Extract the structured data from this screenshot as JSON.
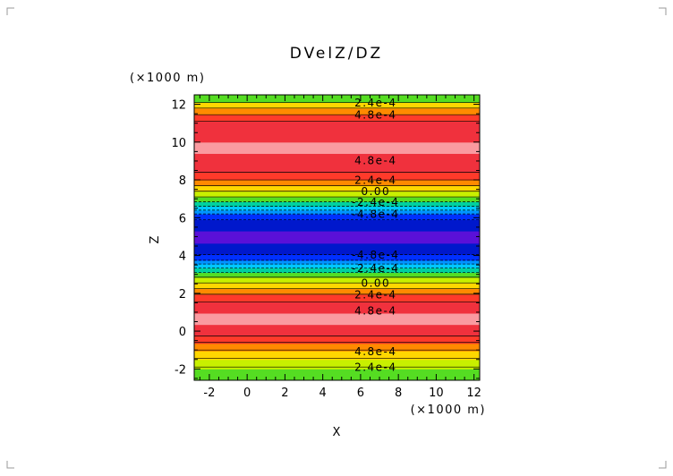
{
  "chart_data": {
    "type": "heatmap",
    "title": "DVelZ/DZ",
    "xlabel": "X",
    "ylabel": "Z",
    "x_unit": "(×1000 m)",
    "y_unit": "(×1000 m)",
    "xlim": [
      -2.8,
      12.3
    ],
    "ylim": [
      -2.6,
      12.5
    ],
    "x_ticks": [
      -2,
      0,
      2,
      4,
      6,
      8,
      10,
      12
    ],
    "y_ticks": [
      -2,
      0,
      2,
      4,
      6,
      8,
      10,
      12
    ],
    "x_tick_labels": [
      "-2",
      "0",
      "2",
      "4",
      "6",
      "8",
      "10",
      "12"
    ],
    "y_tick_labels": [
      "-2",
      "0",
      "2",
      "4",
      "6",
      "8",
      "10",
      "12"
    ],
    "bands": [
      {
        "z0": -2.6,
        "z1": -2.0,
        "color": "#55dd22"
      },
      {
        "z0": -2.0,
        "z1": -1.5,
        "color": "#c8f000"
      },
      {
        "z0": -1.5,
        "z1": -1.05,
        "color": "#ffd700"
      },
      {
        "z0": -1.05,
        "z1": -0.65,
        "color": "#ff8a00"
      },
      {
        "z0": -0.65,
        "z1": -0.25,
        "color": "#ff3a2a"
      },
      {
        "z0": -0.25,
        "z1": 0.35,
        "color": "#f0313d"
      },
      {
        "z0": 0.35,
        "z1": 0.95,
        "color": "#fa9aa0"
      },
      {
        "z0": 0.95,
        "z1": 1.55,
        "color": "#f0313d"
      },
      {
        "z0": 1.55,
        "z1": 1.95,
        "color": "#ff3a2a"
      },
      {
        "z0": 1.95,
        "z1": 2.25,
        "color": "#ff8a00"
      },
      {
        "z0": 2.25,
        "z1": 2.55,
        "color": "#ffd700"
      },
      {
        "z0": 2.55,
        "z1": 2.85,
        "color": "#c8f000"
      },
      {
        "z0": 2.85,
        "z1": 3.1,
        "color": "#55dd22"
      },
      {
        "z0": 3.1,
        "z1": 3.35,
        "color": "#00d0a0"
      },
      {
        "z0": 3.35,
        "z1": 3.55,
        "color": "#00c8ff"
      },
      {
        "z0": 3.55,
        "z1": 3.75,
        "color": "#0094ff"
      },
      {
        "z0": 3.75,
        "z1": 4.05,
        "color": "#0030ff"
      },
      {
        "z0": 4.05,
        "z1": 4.65,
        "color": "#0018cc"
      },
      {
        "z0": 4.65,
        "z1": 5.3,
        "color": "#5a10d8"
      },
      {
        "z0": 5.3,
        "z1": 5.9,
        "color": "#0018cc"
      },
      {
        "z0": 5.9,
        "z1": 6.2,
        "color": "#0030ff"
      },
      {
        "z0": 6.2,
        "z1": 6.4,
        "color": "#0094ff"
      },
      {
        "z0": 6.4,
        "z1": 6.6,
        "color": "#00c8ff"
      },
      {
        "z0": 6.6,
        "z1": 6.85,
        "color": "#00d0a0"
      },
      {
        "z0": 6.85,
        "z1": 7.1,
        "color": "#55dd22"
      },
      {
        "z0": 7.1,
        "z1": 7.4,
        "color": "#c8f000"
      },
      {
        "z0": 7.4,
        "z1": 7.7,
        "color": "#ffd700"
      },
      {
        "z0": 7.7,
        "z1": 8.0,
        "color": "#ff8a00"
      },
      {
        "z0": 8.0,
        "z1": 8.4,
        "color": "#ff3a2a"
      },
      {
        "z0": 8.4,
        "z1": 9.4,
        "color": "#f0313d"
      },
      {
        "z0": 9.4,
        "z1": 10.0,
        "color": "#fa9aa0"
      },
      {
        "z0": 10.0,
        "z1": 11.1,
        "color": "#f0313d"
      },
      {
        "z0": 11.1,
        "z1": 11.45,
        "color": "#ff3a2a"
      },
      {
        "z0": 11.45,
        "z1": 11.8,
        "color": "#ff8a00"
      },
      {
        "z0": 11.8,
        "z1": 12.1,
        "color": "#ffd700"
      },
      {
        "z0": 12.1,
        "z1": 12.5,
        "color": "#55dd22"
      }
    ],
    "contour_lines": [
      {
        "z": -1.9,
        "dashed": false
      },
      {
        "z": -1.45,
        "dashed": false
      },
      {
        "z": -1.0,
        "dashed": false
      },
      {
        "z": -0.6,
        "dashed": false
      },
      {
        "z": -0.25,
        "dashed": false
      },
      {
        "z": 1.55,
        "dashed": false
      },
      {
        "z": 1.95,
        "dashed": false
      },
      {
        "z": 2.25,
        "dashed": false
      },
      {
        "z": 2.55,
        "dashed": false
      },
      {
        "z": 2.85,
        "dashed": false
      },
      {
        "z": 3.1,
        "dashed": true
      },
      {
        "z": 3.35,
        "dashed": true
      },
      {
        "z": 3.55,
        "dashed": true
      },
      {
        "z": 3.75,
        "dashed": true
      },
      {
        "z": 4.05,
        "dashed": true
      },
      {
        "z": 5.9,
        "dashed": true
      },
      {
        "z": 6.2,
        "dashed": true
      },
      {
        "z": 6.4,
        "dashed": true
      },
      {
        "z": 6.6,
        "dashed": true
      },
      {
        "z": 6.85,
        "dashed": true
      },
      {
        "z": 7.1,
        "dashed": false
      },
      {
        "z": 7.4,
        "dashed": false
      },
      {
        "z": 7.7,
        "dashed": false
      },
      {
        "z": 8.0,
        "dashed": false
      },
      {
        "z": 8.4,
        "dashed": false
      },
      {
        "z": 11.1,
        "dashed": false
      },
      {
        "z": 11.45,
        "dashed": false
      },
      {
        "z": 11.8,
        "dashed": false
      },
      {
        "z": 12.1,
        "dashed": false
      }
    ],
    "contour_labels": [
      {
        "z": 12.1,
        "x": 6.8,
        "text": "2.4e-4"
      },
      {
        "z": 11.45,
        "x": 6.8,
        "text": "4.8e-4"
      },
      {
        "z": 9.05,
        "x": 6.8,
        "text": "4.8e-4"
      },
      {
        "z": 8.0,
        "x": 6.8,
        "text": "2.4e-4"
      },
      {
        "z": 7.4,
        "x": 6.8,
        "text": "0.00"
      },
      {
        "z": 6.85,
        "x": 6.8,
        "text": "-2.4e-4"
      },
      {
        "z": 6.2,
        "x": 6.8,
        "text": "-4.8e-4"
      },
      {
        "z": 4.05,
        "x": 6.8,
        "text": "-4.8e-4"
      },
      {
        "z": 3.35,
        "x": 6.8,
        "text": "-2.4e-4"
      },
      {
        "z": 2.55,
        "x": 6.8,
        "text": "0.00"
      },
      {
        "z": 1.95,
        "x": 6.8,
        "text": "2.4e-4"
      },
      {
        "z": 1.1,
        "x": 6.8,
        "text": "4.8e-4"
      },
      {
        "z": -1.05,
        "x": 6.8,
        "text": "4.8e-4"
      },
      {
        "z": -1.9,
        "x": 6.8,
        "text": "2.4e-4"
      }
    ]
  }
}
